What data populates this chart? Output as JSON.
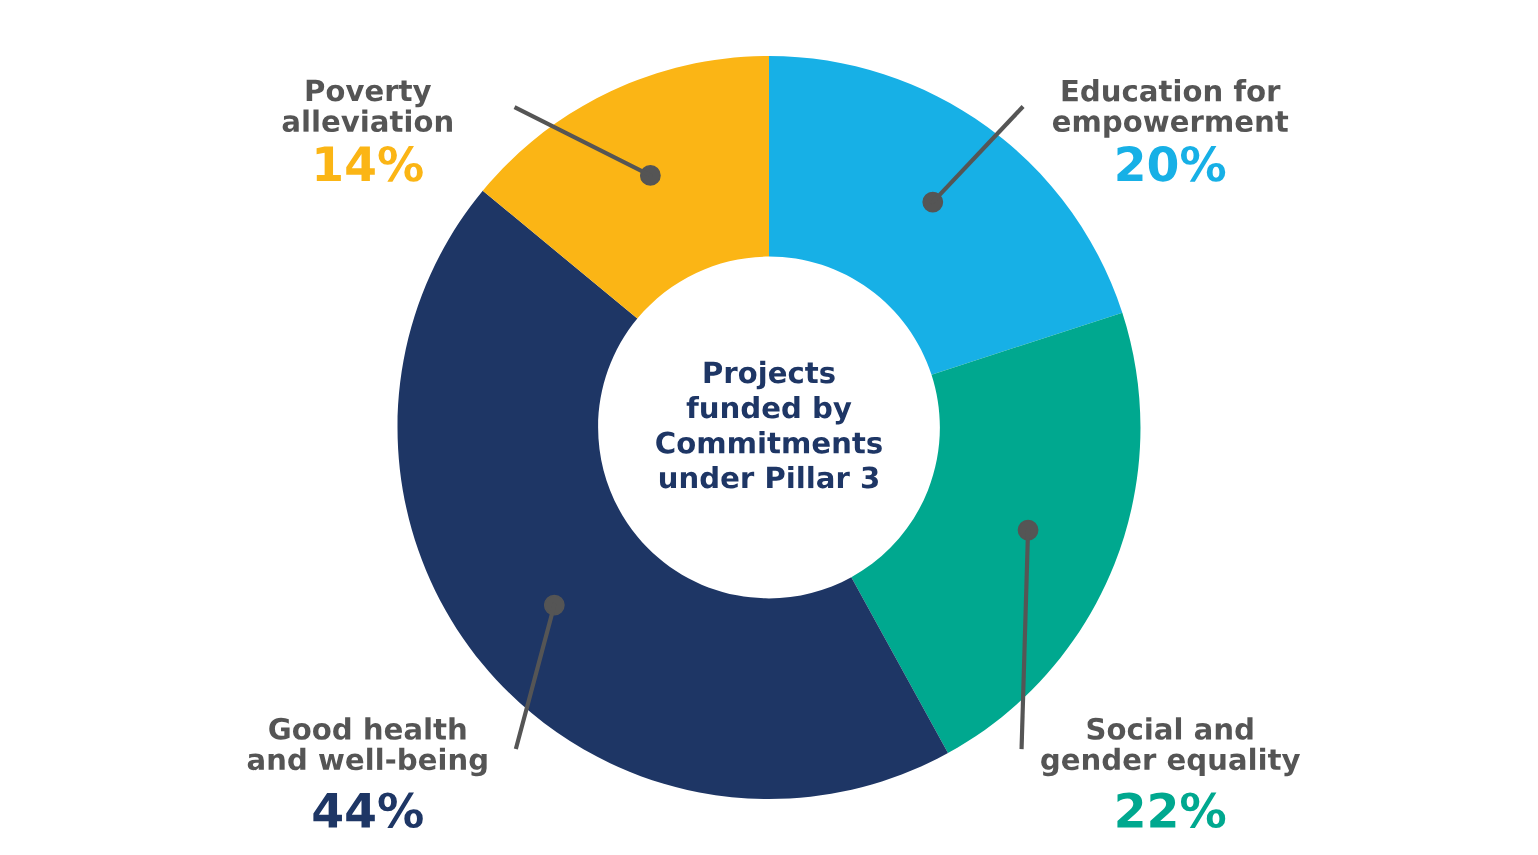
{
  "chart_data": {
    "type": "donut",
    "title": "Projects\nfunded by\nCommitments\nunder Pillar 3",
    "categories": [
      "Education for\nempowerment",
      "Social and\ngender equality",
      "Good health\nand well-being",
      "Poverty\nalleviation"
    ],
    "values": [
      20,
      22,
      44,
      14
    ],
    "value_labels": [
      "20%",
      "22%",
      "44%",
      "14%"
    ],
    "colors": [
      "#17b0e6",
      "#00a88f",
      "#1e3665",
      "#fbb515"
    ]
  }
}
